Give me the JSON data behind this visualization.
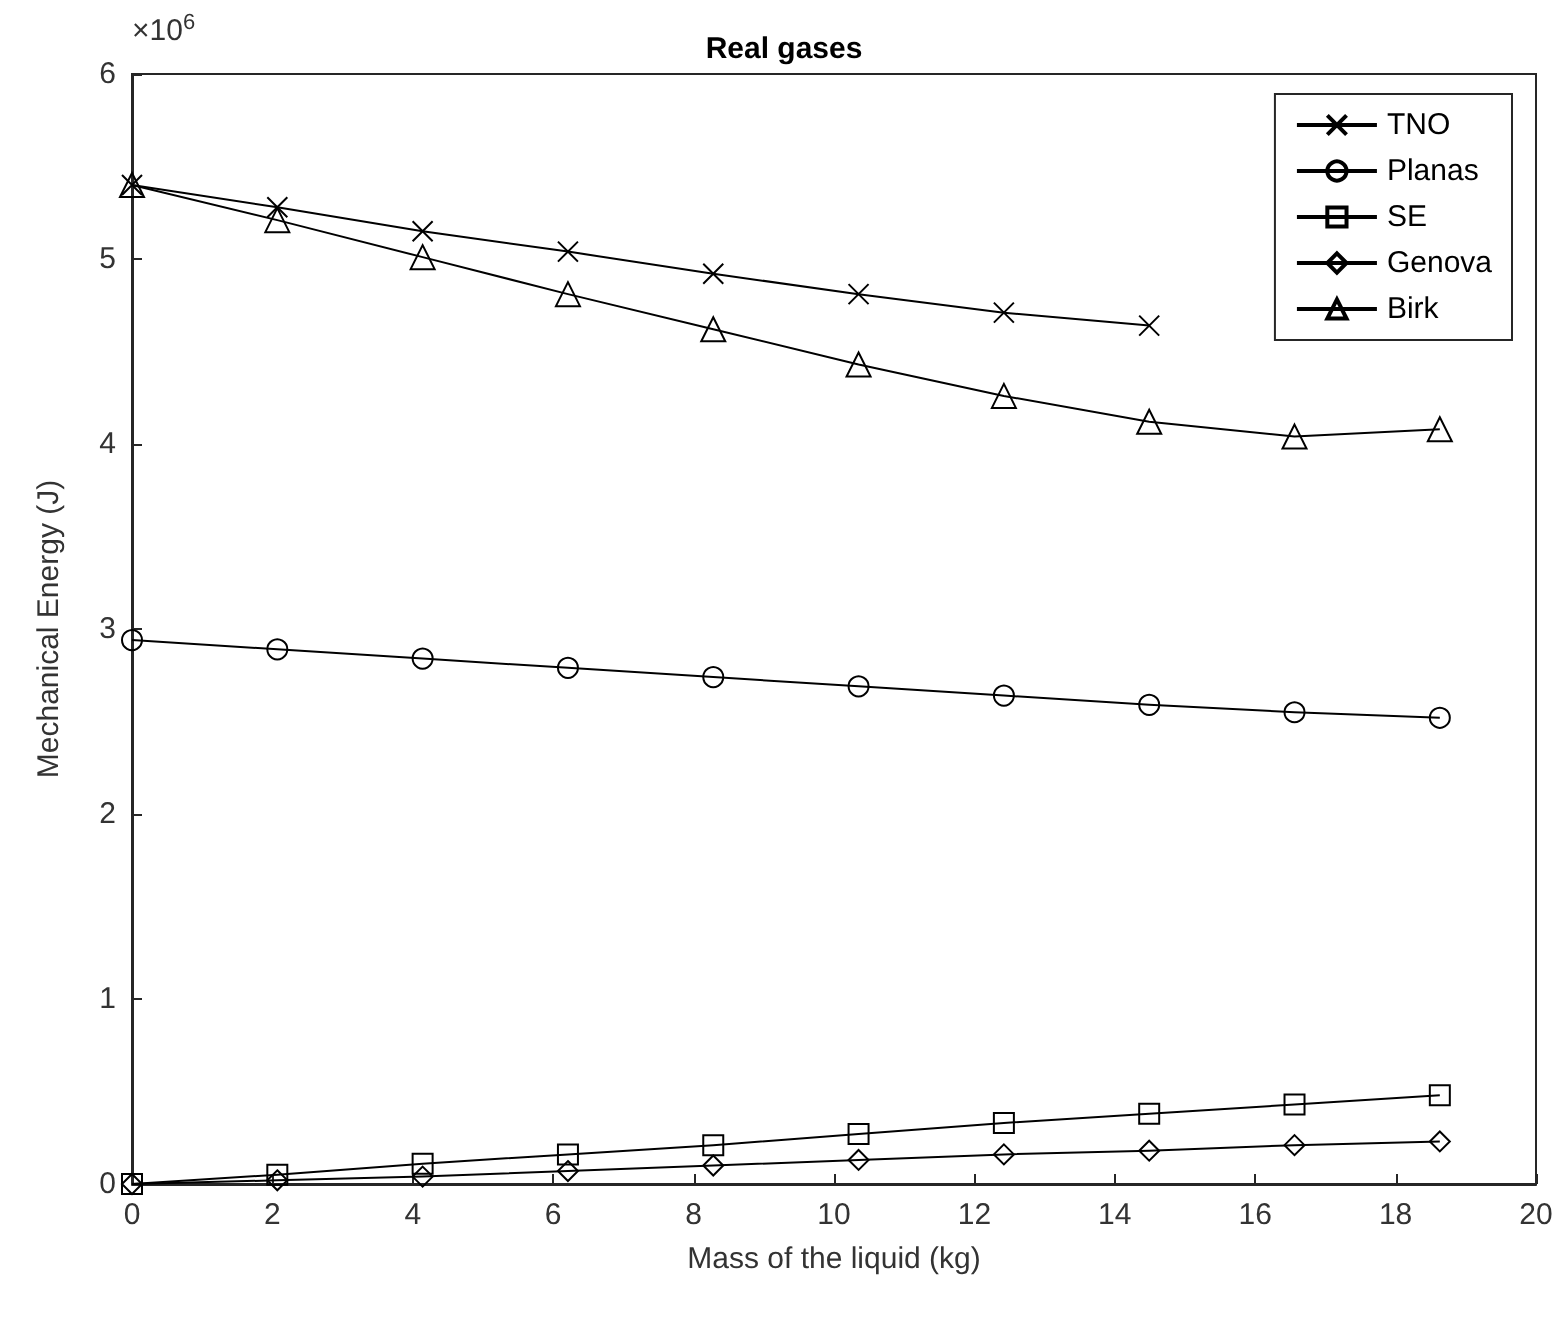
{
  "chart_data": {
    "type": "line",
    "title": "Real gases",
    "xlabel": "Mass of the liquid (kg)",
    "ylabel": "Mechanical Energy (J)",
    "annotations": [
      "×10$^{6}$"
    ],
    "x": [
      0,
      2.07,
      4.14,
      6.21,
      8.28,
      10.35,
      12.42,
      14.49,
      16.56,
      18.63
    ],
    "series": [
      {
        "name": "TNO",
        "color": "#000000",
        "marker": "cross",
        "values": [
          5.4,
          5.28,
          5.15,
          5.04,
          4.92,
          4.81,
          4.71,
          4.64,
          null,
          null
        ]
      },
      {
        "name": "Planas",
        "color": "#000000",
        "marker": "circle",
        "values": [
          2.94,
          2.89,
          2.84,
          2.79,
          2.74,
          2.69,
          2.64,
          2.59,
          2.55,
          2.52
        ]
      },
      {
        "name": "SE",
        "color": "#000000",
        "marker": "square",
        "values": [
          0,
          0.05,
          0.11,
          0.16,
          0.21,
          0.27,
          0.33,
          0.38,
          0.43,
          0.48
        ]
      },
      {
        "name": "Genova",
        "color": "#000000",
        "marker": "diamond",
        "values": [
          0,
          0.02,
          0.04,
          0.07,
          0.1,
          0.13,
          0.16,
          0.18,
          0.21,
          0.23
        ]
      },
      {
        "name": "Birk",
        "color": "#000000",
        "marker": "triangle",
        "values": [
          5.4,
          5.21,
          5.01,
          4.81,
          4.62,
          4.43,
          4.26,
          4.12,
          4.04,
          4.08
        ]
      }
    ],
    "xlim": [
      0,
      20
    ],
    "xticks": [
      0,
      2,
      4,
      6,
      8,
      10,
      12,
      14,
      16,
      18,
      20
    ],
    "ylim": [
      0,
      6
    ],
    "yticks": [
      0,
      1,
      2,
      3,
      4,
      5,
      6
    ],
    "grid": false,
    "legend": "top right",
    "line_style": "solid"
  }
}
